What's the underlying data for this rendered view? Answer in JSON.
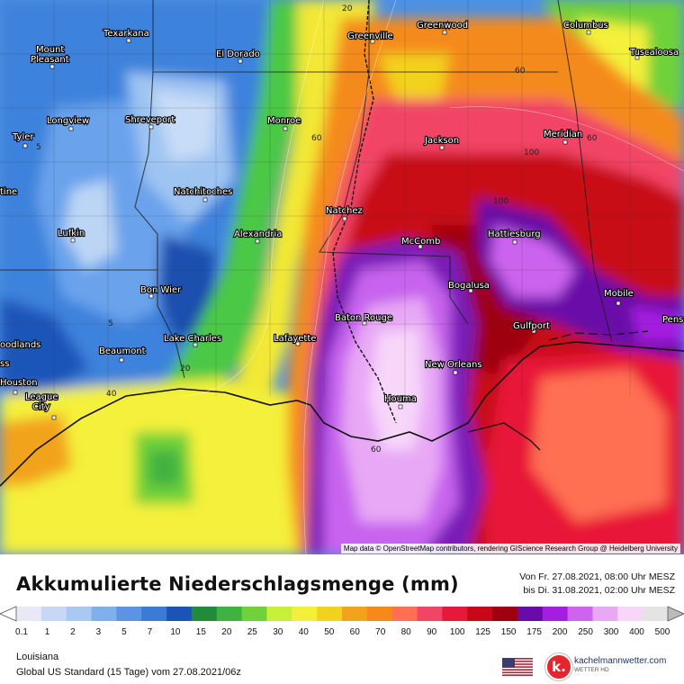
{
  "map": {
    "cities": [
      {
        "name": "Texarkana"
      },
      {
        "name": "Mount"
      },
      {
        "name": "Pleasant"
      },
      {
        "name": "El Dorado"
      },
      {
        "name": "Greenville"
      },
      {
        "name": "Greenwood"
      },
      {
        "name": "Columbus"
      },
      {
        "name": "Tuscaloosa"
      },
      {
        "name": "Longview"
      },
      {
        "name": "Shreveport"
      },
      {
        "name": "Monroe"
      },
      {
        "name": "Jackson"
      },
      {
        "name": "Meridian"
      },
      {
        "name": "Tyler"
      },
      {
        "name": "Natchitoches"
      },
      {
        "name": "Natchez"
      },
      {
        "name": "Lufkin"
      },
      {
        "name": "Alexandria"
      },
      {
        "name": "McComb"
      },
      {
        "name": "Hattiesburg"
      },
      {
        "name": "Bon Wier"
      },
      {
        "name": "Bogalusa"
      },
      {
        "name": "Mobile"
      },
      {
        "name": "Baton Rouge"
      },
      {
        "name": "Gulfport"
      },
      {
        "name": "Pens"
      },
      {
        "name": "oodlands"
      },
      {
        "name": "ss"
      },
      {
        "name": "Lake Charles"
      },
      {
        "name": "Lafayette"
      },
      {
        "name": "Beaumont"
      },
      {
        "name": "New Orleans"
      },
      {
        "name": "Houston"
      },
      {
        "name": "League"
      },
      {
        "name": "City"
      },
      {
        "name": "Houma"
      },
      {
        "name": "tine"
      }
    ],
    "contour_labels": [
      "20",
      "60",
      "60",
      "100",
      "5",
      "5",
      "20",
      "40",
      "60",
      "100",
      "60"
    ],
    "attribution": "Map data © OpenStreetMap contributors, rendering GIScience Research Group @ Heidelberg University"
  },
  "legend": {
    "title": "Akkumulierte Niederschlagsmenge (mm)",
    "period_from": "Von Fr. 27.08.2021, 08:00 Uhr MESZ",
    "period_to": "bis Di. 31.08.2021, 02:00 Uhr MESZ",
    "ticks": [
      "0.1",
      "1",
      "2",
      "3",
      "5",
      "7",
      "10",
      "15",
      "20",
      "25",
      "30",
      "40",
      "50",
      "60",
      "70",
      "80",
      "90",
      "100",
      "125",
      "150",
      "175",
      "200",
      "250",
      "300",
      "400",
      "500"
    ],
    "colors": [
      "#e8e8f7",
      "#c8d7f5",
      "#a9c8f4",
      "#7fb0ee",
      "#5a95e3",
      "#3a7bd6",
      "#1a55b5",
      "#228b3a",
      "#3fb23f",
      "#6fd13b",
      "#c8f03a",
      "#f4f03a",
      "#f2d21c",
      "#f2a31c",
      "#f58a1a",
      "#ff6f52",
      "#f24566",
      "#e81838",
      "#c80818",
      "#9e0010",
      "#6a0aa8",
      "#a41ee0",
      "#cc64ee",
      "#e8a8f5",
      "#f7d6fa",
      "#e4e4e4"
    ],
    "region": "Louisiana",
    "model": "Global US Standard (15 Tage) vom 27.08.2021/06z",
    "logo_text": "kachelmannwetter.com",
    "logo_sub": "WETTER HD",
    "logo_letter": "k."
  }
}
